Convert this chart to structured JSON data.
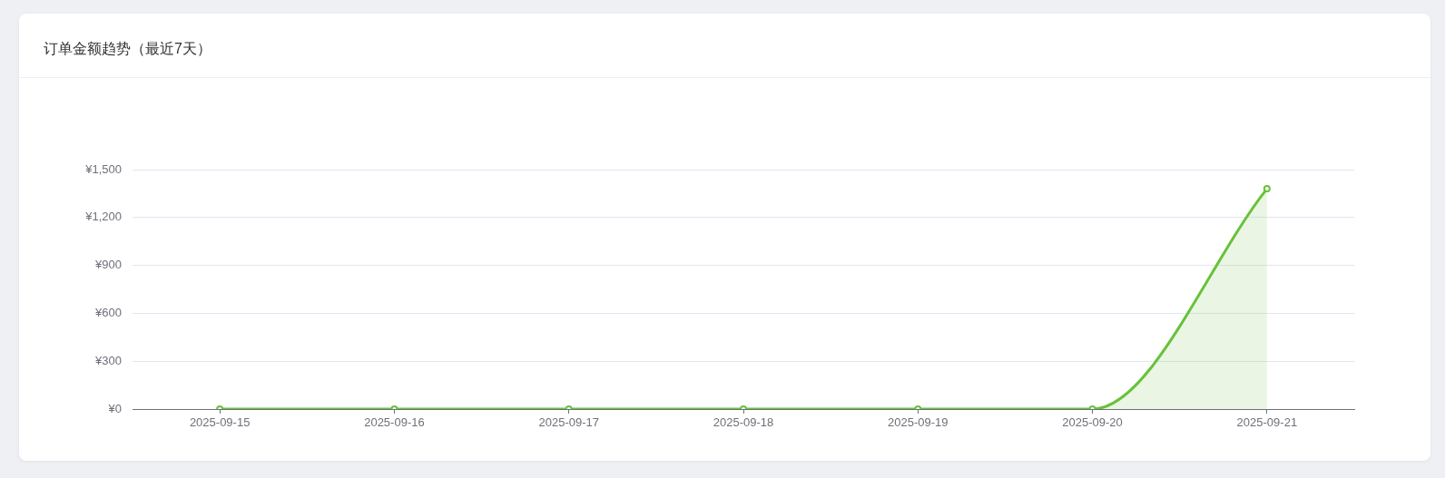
{
  "chart_data": {
    "type": "area",
    "title": "订单金额趋势（最近7天）",
    "categories": [
      "2025-09-15",
      "2025-09-16",
      "2025-09-17",
      "2025-09-18",
      "2025-09-19",
      "2025-09-20",
      "2025-09-21"
    ],
    "values": [
      0,
      0,
      0,
      0,
      0,
      0,
      1380
    ],
    "color": "#67c23a",
    "ylim": [
      0,
      1500
    ],
    "yticks": [
      {
        "value": 0,
        "label": "¥0"
      },
      {
        "value": 300,
        "label": "¥300"
      },
      {
        "value": 600,
        "label": "¥600"
      },
      {
        "value": 900,
        "label": "¥900"
      },
      {
        "value": 1200,
        "label": "¥1,200"
      },
      {
        "value": 1500,
        "label": "¥1,500"
      }
    ],
    "grid": "y",
    "legend": false,
    "marker": "circle",
    "line_style": "solid"
  }
}
